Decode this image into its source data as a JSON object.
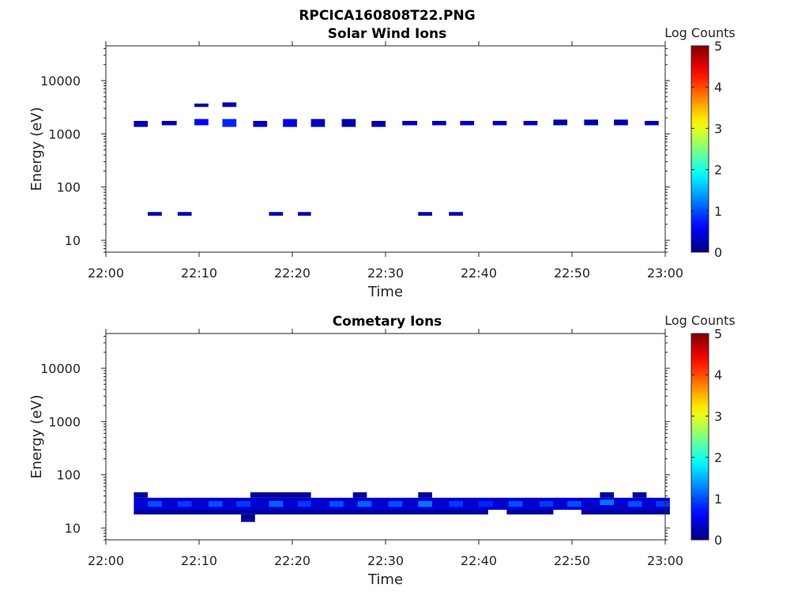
{
  "figure": {
    "title": "RPCICA160808T22.PNG"
  },
  "colorbar": {
    "label": "Log Counts",
    "ticks": [
      "0",
      "1",
      "2",
      "3",
      "4",
      "5"
    ],
    "range": [
      0,
      5
    ]
  },
  "chart_data": [
    {
      "type": "heatmap",
      "title": "Solar Wind Ions",
      "xlabel": "Time",
      "ylabel": "Energy (eV)",
      "y_scale": "log",
      "xlim": [
        "22:00",
        "23:00"
      ],
      "ylim": [
        6,
        45000
      ],
      "x_ticks": [
        "22:00",
        "22:10",
        "22:20",
        "22:30",
        "22:40",
        "22:50",
        "23:00"
      ],
      "y_ticks": [
        "10",
        "100",
        "1000",
        "10000"
      ],
      "value_label": "Log Counts",
      "cells": [
        {
          "t0": "22:03",
          "t1": "22:04.5",
          "e0": 1350,
          "e1": 1750,
          "v": 0.2
        },
        {
          "t0": "22:06",
          "t1": "22:07.6",
          "e0": 1450,
          "e1": 1750,
          "v": 0.25
        },
        {
          "t0": "22:09.5",
          "t1": "22:11",
          "e0": 3200,
          "e1": 3700,
          "v": 0.2
        },
        {
          "t0": "22:09.5",
          "t1": "22:11",
          "e0": 1450,
          "e1": 1900,
          "v": 0.6
        },
        {
          "t0": "22:12.5",
          "t1": "22:14",
          "e0": 3200,
          "e1": 3900,
          "v": 0.2
        },
        {
          "t0": "22:12.5",
          "t1": "22:14",
          "e0": 1350,
          "e1": 1900,
          "v": 0.8
        },
        {
          "t0": "22:15.8",
          "t1": "22:17.3",
          "e0": 1350,
          "e1": 1750,
          "v": 0.3
        },
        {
          "t0": "22:19",
          "t1": "22:20.5",
          "e0": 1350,
          "e1": 1900,
          "v": 0.5
        },
        {
          "t0": "22:22",
          "t1": "22:23.5",
          "e0": 1350,
          "e1": 1900,
          "v": 0.3
        },
        {
          "t0": "22:25.3",
          "t1": "22:26.8",
          "e0": 1350,
          "e1": 1900,
          "v": 0.2
        },
        {
          "t0": "22:28.5",
          "t1": "22:30",
          "e0": 1350,
          "e1": 1750,
          "v": 0.2
        },
        {
          "t0": "22:31.8",
          "t1": "22:33.4",
          "e0": 1450,
          "e1": 1750,
          "v": 0.3
        },
        {
          "t0": "22:35",
          "t1": "22:36.5",
          "e0": 1450,
          "e1": 1750,
          "v": 0.3
        },
        {
          "t0": "22:38",
          "t1": "22:39.5",
          "e0": 1450,
          "e1": 1750,
          "v": 0.3
        },
        {
          "t0": "22:41.5",
          "t1": "22:43",
          "e0": 1450,
          "e1": 1750,
          "v": 0.3
        },
        {
          "t0": "22:44.8",
          "t1": "22:46.3",
          "e0": 1450,
          "e1": 1750,
          "v": 0.3
        },
        {
          "t0": "22:48",
          "t1": "22:49.5",
          "e0": 1450,
          "e1": 1850,
          "v": 0.2
        },
        {
          "t0": "22:51.3",
          "t1": "22:52.8",
          "e0": 1450,
          "e1": 1850,
          "v": 0.2
        },
        {
          "t0": "22:54.5",
          "t1": "22:56",
          "e0": 1450,
          "e1": 1850,
          "v": 0.2
        },
        {
          "t0": "22:57.8",
          "t1": "22:59.3",
          "e0": 1450,
          "e1": 1750,
          "v": 0.3
        },
        {
          "t0": "22:04.5",
          "t1": "22:06",
          "e0": 29,
          "e1": 34,
          "v": 0.2
        },
        {
          "t0": "22:07.7",
          "t1": "22:09.2",
          "e0": 29,
          "e1": 34,
          "v": 0.2
        },
        {
          "t0": "22:17.5",
          "t1": "22:19",
          "e0": 29,
          "e1": 34,
          "v": 0.2
        },
        {
          "t0": "22:20.6",
          "t1": "22:22",
          "e0": 29,
          "e1": 34,
          "v": 0.2
        },
        {
          "t0": "22:33.5",
          "t1": "22:35",
          "e0": 29,
          "e1": 34,
          "v": 0.2
        },
        {
          "t0": "22:36.8",
          "t1": "22:38.3",
          "e0": 29,
          "e1": 34,
          "v": 0.2
        }
      ]
    },
    {
      "type": "heatmap",
      "title": "Cometary Ions",
      "xlabel": "Time",
      "ylabel": "Energy (eV)",
      "y_scale": "log",
      "xlim": [
        "22:00",
        "23:00"
      ],
      "ylim": [
        6,
        45000
      ],
      "x_ticks": [
        "22:00",
        "22:10",
        "22:20",
        "22:30",
        "22:40",
        "22:50",
        "23:00"
      ],
      "y_ticks": [
        "10",
        "100",
        "1000",
        "10000"
      ],
      "value_label": "Log Counts",
      "cells": [
        {
          "t0": "22:03",
          "t1": "22:41",
          "e0": 18,
          "e1": 22,
          "v": 0.15
        },
        {
          "t0": "22:43",
          "t1": "22:48",
          "e0": 18,
          "e1": 22,
          "v": 0.15
        },
        {
          "t0": "22:51",
          "t1": "23:00.5",
          "e0": 18,
          "e1": 22,
          "v": 0.15
        },
        {
          "t0": "22:14.5",
          "t1": "22:16",
          "e0": 13,
          "e1": 18,
          "v": 0.15
        },
        {
          "t0": "22:03",
          "t1": "23:00.5",
          "e0": 22,
          "e1": 37,
          "v": 0.4
        },
        {
          "t0": "22:03",
          "t1": "22:04.5",
          "e0": 37,
          "e1": 47,
          "v": 0.15
        },
        {
          "t0": "22:15.5",
          "t1": "22:22",
          "e0": 37,
          "e1": 47,
          "v": 0.15
        },
        {
          "t0": "22:26.5",
          "t1": "22:28",
          "e0": 37,
          "e1": 47,
          "v": 0.15
        },
        {
          "t0": "22:33.5",
          "t1": "22:35",
          "e0": 37,
          "e1": 47,
          "v": 0.15
        },
        {
          "t0": "22:53",
          "t1": "22:54.5",
          "e0": 37,
          "e1": 47,
          "v": 0.15
        },
        {
          "t0": "22:56.5",
          "t1": "22:58",
          "e0": 37,
          "e1": 47,
          "v": 0.15
        },
        {
          "t0": "22:04.5",
          "t1": "22:06",
          "e0": 25,
          "e1": 32,
          "v": 1.0
        },
        {
          "t0": "22:07.7",
          "t1": "22:09.2",
          "e0": 25,
          "e1": 32,
          "v": 0.9
        },
        {
          "t0": "22:11",
          "t1": "22:12.5",
          "e0": 25,
          "e1": 32,
          "v": 1.0
        },
        {
          "t0": "22:14",
          "t1": "22:15.5",
          "e0": 25,
          "e1": 32,
          "v": 0.9
        },
        {
          "t0": "22:17.5",
          "t1": "22:19",
          "e0": 25,
          "e1": 32,
          "v": 1.1
        },
        {
          "t0": "22:20.6",
          "t1": "22:22",
          "e0": 25,
          "e1": 32,
          "v": 0.9
        },
        {
          "t0": "22:24",
          "t1": "22:25.5",
          "e0": 25,
          "e1": 32,
          "v": 1.0
        },
        {
          "t0": "22:27",
          "t1": "22:28.5",
          "e0": 25,
          "e1": 32,
          "v": 1.1
        },
        {
          "t0": "22:30.3",
          "t1": "22:31.8",
          "e0": 25,
          "e1": 32,
          "v": 1.0
        },
        {
          "t0": "22:33.5",
          "t1": "22:35",
          "e0": 25,
          "e1": 32,
          "v": 1.2
        },
        {
          "t0": "22:36.8",
          "t1": "22:38.3",
          "e0": 25,
          "e1": 32,
          "v": 0.9
        },
        {
          "t0": "22:40",
          "t1": "22:41.5",
          "e0": 25,
          "e1": 32,
          "v": 0.8
        },
        {
          "t0": "22:43.2",
          "t1": "22:44.7",
          "e0": 25,
          "e1": 32,
          "v": 1.0
        },
        {
          "t0": "22:46.5",
          "t1": "22:48",
          "e0": 25,
          "e1": 32,
          "v": 0.9
        },
        {
          "t0": "22:49.5",
          "t1": "22:51",
          "e0": 25,
          "e1": 32,
          "v": 1.0
        },
        {
          "t0": "22:53",
          "t1": "22:54.5",
          "e0": 27,
          "e1": 34,
          "v": 1.2
        },
        {
          "t0": "22:56",
          "t1": "22:57.5",
          "e0": 25,
          "e1": 32,
          "v": 1.0
        },
        {
          "t0": "22:59",
          "t1": "23:00.5",
          "e0": 25,
          "e1": 32,
          "v": 0.9
        }
      ]
    }
  ]
}
